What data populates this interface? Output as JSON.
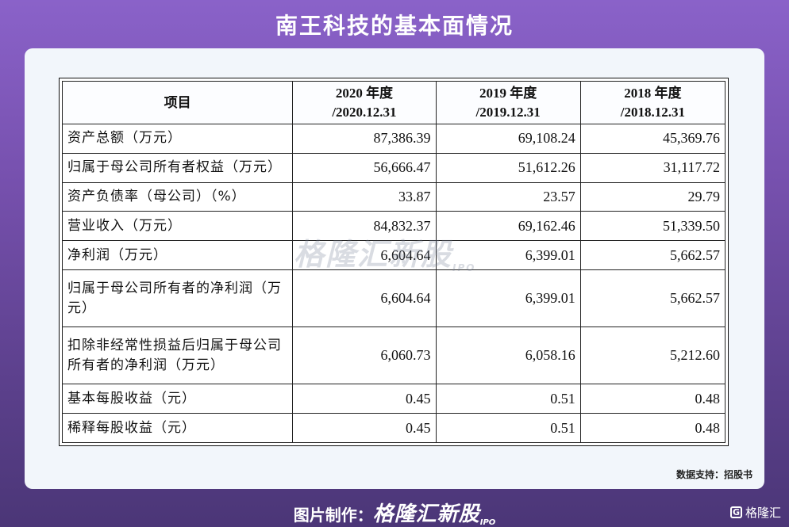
{
  "title": "南王科技的基本面情况",
  "table": {
    "header": {
      "item": "项目",
      "cols": [
        {
          "line1": "2020 年度",
          "line2": "/2020.12.31"
        },
        {
          "line1": "2019 年度",
          "line2": "/2019.12.31"
        },
        {
          "line1": "2018 年度",
          "line2": "/2018.12.31"
        }
      ]
    },
    "rows": [
      {
        "label": "资产总额（万元）",
        "values": [
          "87,386.39",
          "69,108.24",
          "45,369.76"
        ]
      },
      {
        "label": "归属于母公司所有者权益（万元）",
        "values": [
          "56,666.47",
          "51,612.26",
          "31,117.72"
        ]
      },
      {
        "label": "资产负债率（母公司）（%）",
        "values": [
          "33.87",
          "23.57",
          "29.79"
        ]
      },
      {
        "label": "营业收入（万元）",
        "values": [
          "84,832.37",
          "69,162.46",
          "51,339.50"
        ]
      },
      {
        "label": "净利润（万元）",
        "values": [
          "6,604.64",
          "6,399.01",
          "5,662.57"
        ]
      },
      {
        "label": "归属于母公司所有者的净利润（万元）",
        "values": [
          "6,604.64",
          "6,399.01",
          "5,662.57"
        ]
      },
      {
        "label": "扣除非经常性损益后归属于母公司所有者的净利润（万元）",
        "values": [
          "6,060.73",
          "6,058.16",
          "5,212.60"
        ]
      },
      {
        "label": "基本每股收益（元）",
        "values": [
          "0.45",
          "0.51",
          "0.48"
        ]
      },
      {
        "label": "稀释每股收益（元）",
        "values": [
          "0.45",
          "0.51",
          "0.48"
        ]
      }
    ]
  },
  "watermark": {
    "text": "格隆汇新股",
    "ipo": "IPO"
  },
  "source": "数据支持：招股书",
  "footer": {
    "prefix": "图片制作：",
    "brand": "格隆汇新股",
    "ipo": "IPO"
  },
  "corner": {
    "badge": "G",
    "text": "格隆汇"
  }
}
